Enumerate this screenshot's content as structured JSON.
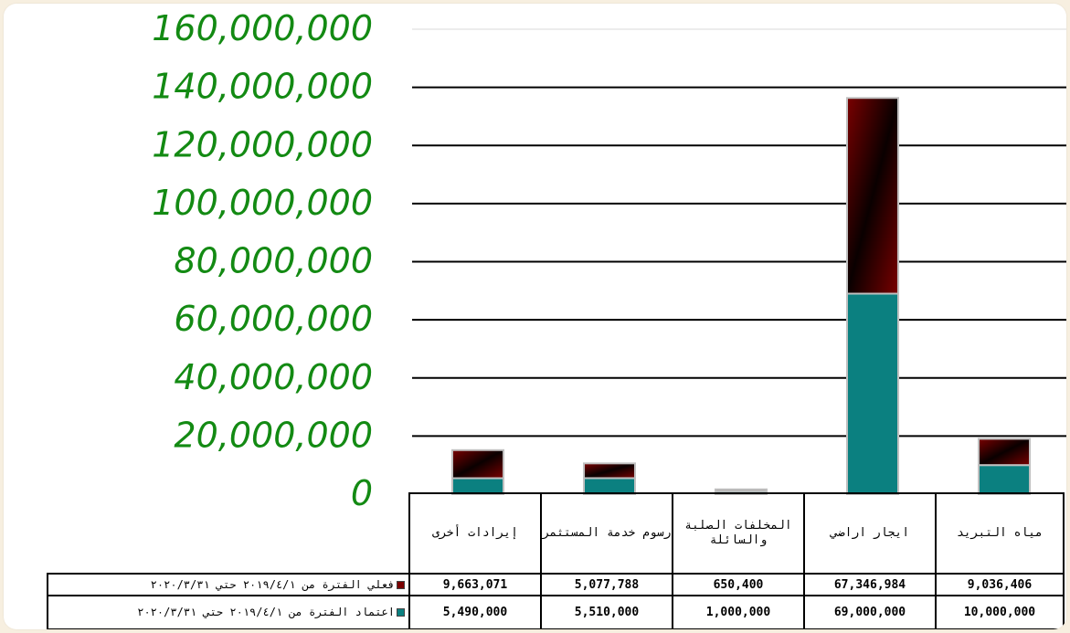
{
  "chart_data": {
    "type": "bar",
    "stacked": true,
    "categories": [
      "مياه التبريد",
      "ايجار اراضي",
      "المخلفات الصلبة والسائلة",
      "رسوم خدمة المستثمر",
      "إيرادات أخرى"
    ],
    "categories_display": [
      "إيرادات أخرى",
      "رسوم خدمة المستثمر",
      "المخلفات الصلبة والسائلة",
      "ايجار اراضي",
      "مياه التبريد"
    ],
    "series": [
      {
        "name": "اعتماد الفترة من ٢٠١٩/٤/١ حتي ٢٠٢٠/٣/٣١",
        "values": [
          10000000,
          69000000,
          1000000,
          5510000,
          5490000
        ],
        "color": "#0b8080",
        "values_display": [
          "5,490,000",
          "5,510,000",
          "1,000,000",
          "69,000,000",
          "10,000,000"
        ]
      },
      {
        "name": "فعلي الفترة من ٢٠١٩/٤/١ حتي ٢٠٢٠/٣/٣١",
        "values": [
          9036406,
          67346984,
          650400,
          5077788,
          9663071
        ],
        "color": "#7a0000",
        "values_display": [
          "9,663,071",
          "5,077,788",
          "650,400",
          "67,346,984",
          "9,036,406"
        ]
      }
    ],
    "ylim": [
      0,
      160000000
    ],
    "yticks": [
      "0",
      "20,000,000",
      "40,000,000",
      "60,000,000",
      "80,000,000",
      "100,000,000",
      "120,000,000",
      "140,000,000",
      "160,000,000"
    ],
    "ytick_values": [
      0,
      20000000,
      40000000,
      60000000,
      80000000,
      100000000,
      120000000,
      140000000,
      160000000
    ],
    "grid": true,
    "legend": "data-table"
  },
  "colors": {
    "tick_text": "#138a13",
    "bar_border": "#c0c0c0",
    "gridline": "#000000"
  }
}
